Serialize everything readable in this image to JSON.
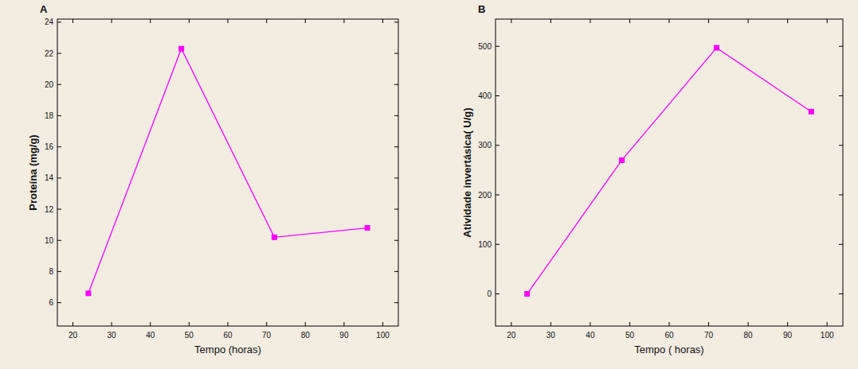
{
  "chart_data": [
    {
      "type": "line",
      "title": "A",
      "x_label": "Tempo (horas)",
      "y_label": "Proteína (mg/g)",
      "x": [
        24,
        48,
        72,
        96
      ],
      "values": [
        6.6,
        22.3,
        10.2,
        10.8
      ],
      "color": "#ff00ff",
      "marker": "square",
      "line_style": "solid",
      "xlim": [
        16,
        104
      ],
      "xticks": [
        20,
        30,
        40,
        50,
        60,
        70,
        80,
        90,
        100
      ],
      "ylim": [
        4.5,
        24.2
      ],
      "yticks": [
        6,
        8,
        10,
        12,
        14,
        16,
        18,
        20,
        22,
        24
      ],
      "grid": false
    },
    {
      "type": "line",
      "title": "B",
      "x_label": "Tempo ( horas)",
      "y_label": "Atividade invertásica( U/g)",
      "x": [
        24,
        48,
        72,
        96
      ],
      "values": [
        0,
        270,
        497,
        368
      ],
      "color": "#ff00ff",
      "marker": "square",
      "line_style": "solid",
      "xlim": [
        16,
        104
      ],
      "xticks": [
        20,
        30,
        40,
        50,
        60,
        70,
        80,
        90,
        100
      ],
      "ylim": [
        -65,
        555
      ],
      "yticks": [
        0,
        100,
        200,
        300,
        400,
        500
      ],
      "grid": false
    }
  ]
}
